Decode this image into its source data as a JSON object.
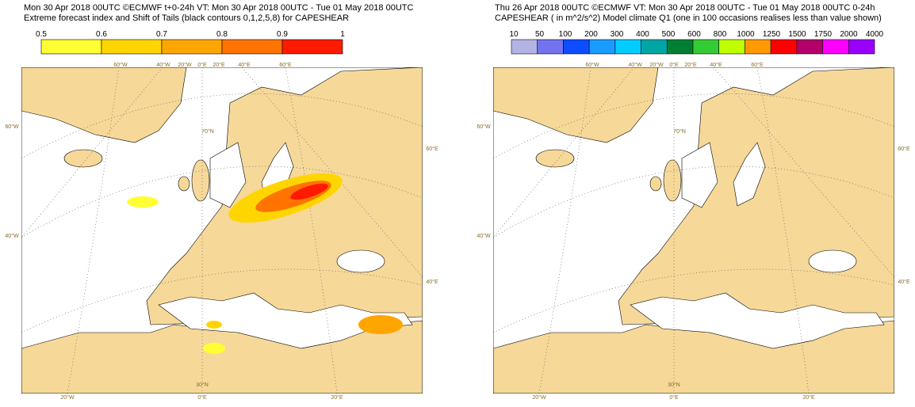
{
  "left_panel": {
    "title_lines": [
      "Mon 30 Apr 2018 00UTC ©ECMWF t+0-24h  VT: Mon 30 Apr 2018 00UTC - Tue 01 May 2018 00UTC",
      "Extreme forecast index and Shift of Tails (black contours 0,1,2,5,8) for CAPESHEAR"
    ],
    "legend": {
      "labels": [
        0.5,
        0.6,
        0.7,
        0.8,
        0.9,
        1
      ],
      "colors": [
        "#ffff33",
        "#ffd500",
        "#ffa500",
        "#ff7300",
        "#ff1a00"
      ]
    },
    "graticule_labels": [
      "60°W",
      "40°W",
      "20°W",
      "0°E",
      "20°E",
      "40°E",
      "60°E",
      "70°N",
      "60°W",
      "40°W",
      "60°E",
      "40°E",
      "30°N",
      "20°W",
      "0°E",
      "20°E"
    ]
  },
  "right_panel": {
    "title_lines": [
      "Thu 26 Apr 2018 00UTC ©ECMWF VT: Mon 30 Apr 2018 00UTC - Tue 01 May 2018 00UTC  0-24h",
      "CAPESHEAR ( in m^2/s^2)  Model climate Q1 (one in 100 occasions realises less than value shown)"
    ],
    "legend": {
      "labels": [
        10,
        50,
        100,
        200,
        300,
        400,
        500,
        600,
        800,
        1000,
        1250,
        1500,
        1750,
        2000,
        4000
      ],
      "colors": [
        "#b3b3e6",
        "#7373f0",
        "#0d4dff",
        "#1a9cff",
        "#00ccff",
        "#00a6a6",
        "#007f33",
        "#33cc33",
        "#bfff00",
        "#ff9900",
        "#ff0000",
        "#b3006b",
        "#ff00ff",
        "#9900ff"
      ]
    },
    "graticule_labels": [
      "60°W",
      "40°W",
      "20°W",
      "0°E",
      "20°E",
      "40°E",
      "60°E",
      "70°N",
      "60°W",
      "40°W",
      "60°E",
      "40°E",
      "30°N",
      "20°W",
      "0°E",
      "20°E"
    ]
  }
}
